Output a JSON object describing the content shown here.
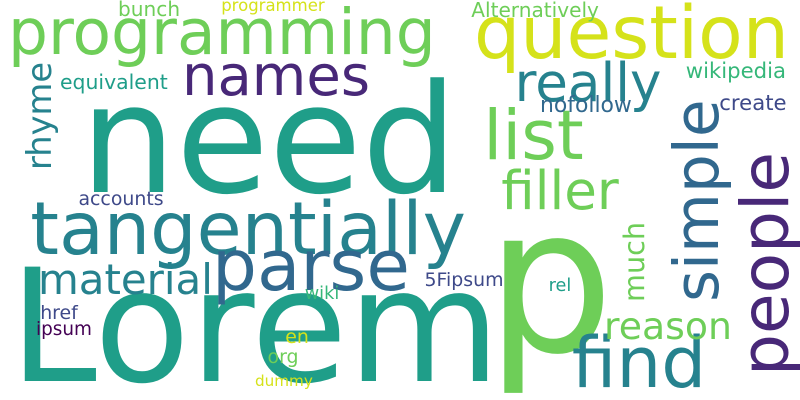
{
  "palette": {
    "background": "#ffffff",
    "yellow_green": "#d5e21a",
    "light_green": "#6ece58",
    "green": "#35b779",
    "teal": "#1f9e89",
    "teal_blue": "#26828e",
    "blue": "#31688e",
    "indigo": "#3e4989",
    "deep_purple": "#482878",
    "dark_purple": "#440154"
  },
  "words": [
    {
      "text": "need",
      "color": "#1f9e89"
    },
    {
      "text": "p",
      "color": "#6ece58"
    },
    {
      "text": "Lorem",
      "color": "#1f9e89"
    },
    {
      "text": "programming",
      "color": "#6ece58"
    },
    {
      "text": "question",
      "color": "#d5e21a"
    },
    {
      "text": "names",
      "color": "#482878"
    },
    {
      "text": "tangentially",
      "color": "#26828e"
    },
    {
      "text": "list",
      "color": "#6ece58"
    },
    {
      "text": "parse",
      "color": "#31688e"
    },
    {
      "text": "simple",
      "color": "#31688e"
    },
    {
      "text": "people",
      "color": "#482878"
    },
    {
      "text": "find",
      "color": "#26828e"
    },
    {
      "text": "really",
      "color": "#26828e"
    },
    {
      "text": "filler",
      "color": "#6ece58"
    },
    {
      "text": "material",
      "color": "#26828e"
    },
    {
      "text": "reason",
      "color": "#6ece58"
    },
    {
      "text": "rhyme",
      "color": "#26828e"
    },
    {
      "text": "much",
      "color": "#6ece58"
    },
    {
      "text": "equivalent",
      "color": "#1f9e89"
    },
    {
      "text": "nofollow",
      "color": "#31688e"
    },
    {
      "text": "wikipedia",
      "color": "#35b779"
    },
    {
      "text": "create",
      "color": "#3e4989"
    },
    {
      "text": "bunch",
      "color": "#6ece58"
    },
    {
      "text": "programmer",
      "color": "#d5e21a"
    },
    {
      "text": "Alternatively",
      "color": "#6ece58"
    },
    {
      "text": "accounts",
      "color": "#3e4989"
    },
    {
      "text": "5Fipsum",
      "color": "#3e4989"
    },
    {
      "text": "wiki",
      "color": "#35b779"
    },
    {
      "text": "rel",
      "color": "#1f9e89"
    },
    {
      "text": "href",
      "color": "#3e4989"
    },
    {
      "text": "ipsum",
      "color": "#440154"
    },
    {
      "text": "en",
      "color": "#d5e21a"
    },
    {
      "text": "org",
      "color": "#6ece58"
    },
    {
      "text": "dummy",
      "color": "#d5e21a"
    }
  ]
}
